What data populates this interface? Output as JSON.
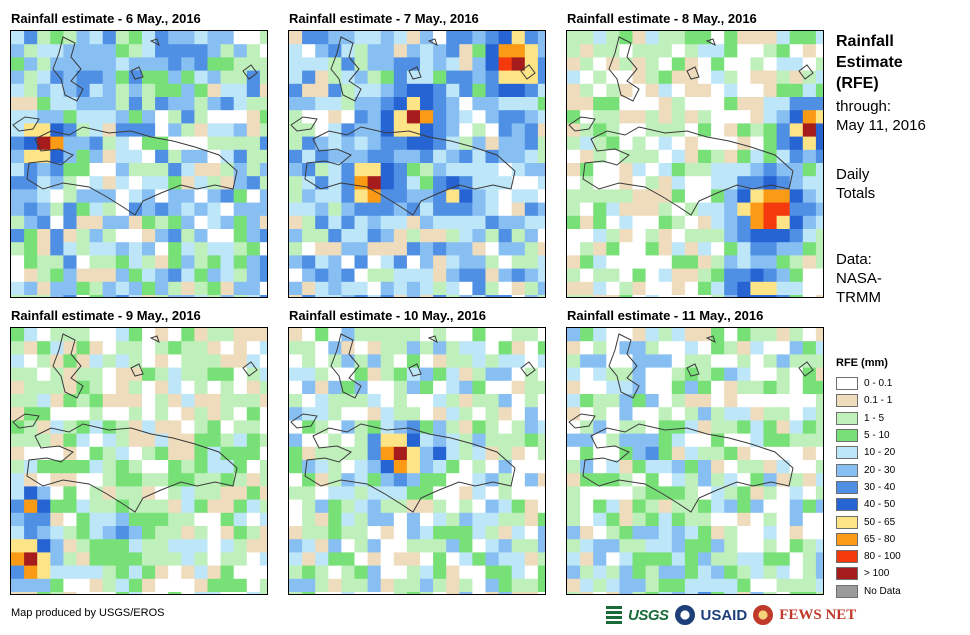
{
  "panels": [
    {
      "title": "Rainfall estimate - 6 May., 2016"
    },
    {
      "title": "Rainfall estimate - 7 May., 2016"
    },
    {
      "title": "Rainfall estimate - 8 May., 2016"
    },
    {
      "title": "Rainfall estimate - 9 May., 2016"
    },
    {
      "title": "Rainfall estimate - 10 May., 2016"
    },
    {
      "title": "Rainfall estimate - 11 May., 2016"
    }
  ],
  "side": {
    "title_lines": [
      "Rainfall",
      "Estimate",
      "(RFE)"
    ],
    "through_label": "through:",
    "through_date": "May 11, 2016",
    "totals_lines": [
      "Daily",
      "Totals"
    ],
    "data_lines": [
      "Data:",
      "NASA-",
      "TRMM"
    ]
  },
  "legend": {
    "title": "RFE (mm)",
    "classes": [
      {
        "label": "0 - 0.1",
        "color": "#ffffff"
      },
      {
        "label": "0.1 - 1",
        "color": "#eedcbc"
      },
      {
        "label": "1 - 5",
        "color": "#bff0bb"
      },
      {
        "label": "5 - 10",
        "color": "#77e077"
      },
      {
        "label": "10 - 20",
        "color": "#bde7f9"
      },
      {
        "label": "20 - 30",
        "color": "#88bff3"
      },
      {
        "label": "30 - 40",
        "color": "#4f8fe4"
      },
      {
        "label": "40 - 50",
        "color": "#2764d3"
      },
      {
        "label": "50 - 65",
        "color": "#fde487"
      },
      {
        "label": "65 - 80",
        "color": "#fb9a14"
      },
      {
        "label": "80 - 100",
        "color": "#f43a0c"
      },
      {
        "label": "> 100",
        "color": "#a61c1c"
      },
      {
        "label": "No Data",
        "color": "#9b9b9b"
      }
    ]
  },
  "footer": {
    "credit": "Map produced by USGS/EROS",
    "logos": [
      "USGS",
      "USAID",
      "FEWS NET"
    ]
  }
}
